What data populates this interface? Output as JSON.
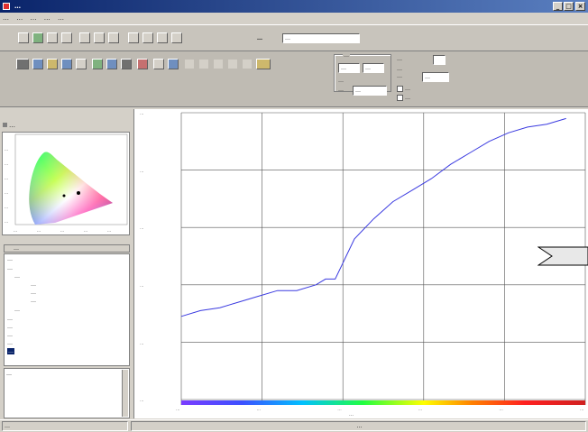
{
  "window": {
    "title": "…",
    "minimize": "_",
    "maximize": "□",
    "close": "×"
  },
  "menu": [
    "…",
    "…",
    "…",
    "…",
    "…"
  ],
  "toolbar": {
    "mode_label": "…",
    "mode_value": "…"
  },
  "controls": {
    "group_title": "…",
    "spin1_value": "…",
    "spin2_value": "…",
    "label_a": "…",
    "label_b": "…",
    "field_b_value": "…",
    "right_label1": "…",
    "right_label2": "…",
    "right_label3": "…",
    "right_field_value": "…",
    "check1_label": "…",
    "check2_label": "…"
  },
  "left": {
    "cie_title": "…",
    "cie_y_ticks": [
      "…",
      "…",
      "…",
      "…",
      "…",
      "…"
    ],
    "cie_x_ticks": [
      "…",
      "…",
      "…",
      "…",
      "…"
    ],
    "tree_header": "…",
    "tree_items": [
      "…",
      "…",
      "…",
      "…",
      "…",
      "…",
      "…",
      "…",
      "…",
      "…",
      "…",
      "…",
      "…"
    ],
    "note_text": "…"
  },
  "chart_data": {
    "type": "line",
    "x": [
      380,
      400,
      420,
      440,
      460,
      480,
      500,
      520,
      530,
      540,
      560,
      580,
      600,
      620,
      640,
      660,
      680,
      700,
      720,
      740,
      760,
      780
    ],
    "values": [
      0.0029,
      0.0031,
      0.0032,
      0.0034,
      0.0036,
      0.0038,
      0.0038,
      0.004,
      0.0042,
      0.0042,
      0.0056,
      0.0063,
      0.0069,
      0.0073,
      0.0077,
      0.0082,
      0.0086,
      0.009,
      0.0093,
      0.0095,
      0.0096,
      0.0098
    ],
    "xlim": [
      380,
      800
    ],
    "ylim": [
      0.0,
      0.01
    ],
    "y_ticks": [
      "…",
      "…",
      "…",
      "…",
      "…",
      "…"
    ],
    "x_ticks": [
      "…",
      "…",
      "…",
      "…",
      "…",
      "…"
    ],
    "xlabel": "…",
    "line_color": "#3a3ae0",
    "grid": true
  },
  "status": {
    "left": "…",
    "right": "…"
  }
}
